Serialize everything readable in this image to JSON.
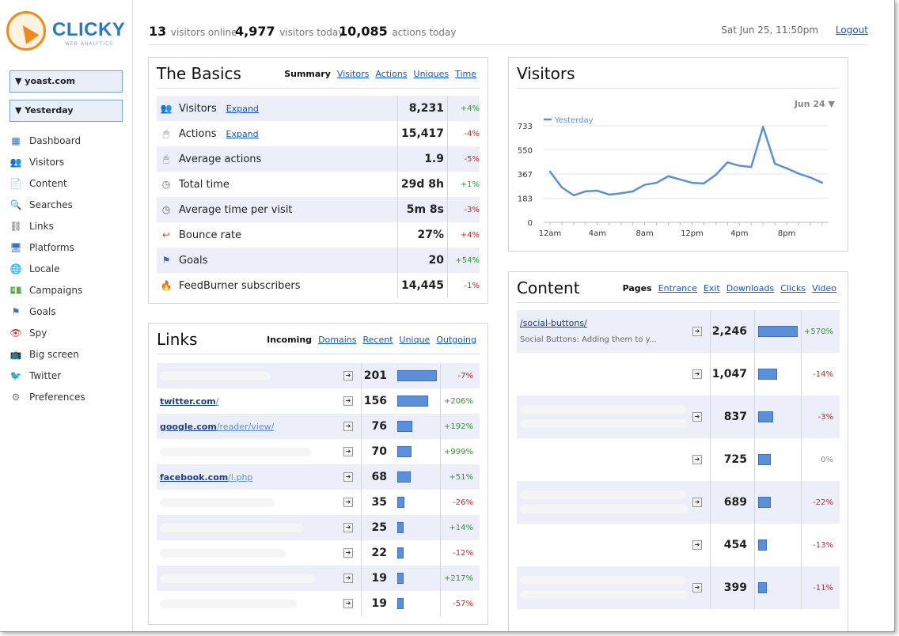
{
  "header": {
    "visitors_online_num": "13",
    "visitors_online_label": "visitors online",
    "visitors_today_num": "4,977",
    "visitors_today_label": "visitors today",
    "actions_today_num": "10,085",
    "actions_today_label": "actions today",
    "datetime": "Sat Jun 25, 11:50pm",
    "logout": "Logout"
  },
  "logo": {
    "text": "CLICKY",
    "sub": "WEB ANALYTICS"
  },
  "sidebar": {
    "site_select": "▼ yoast.com",
    "date_select": "▼ Yesterday",
    "items": [
      {
        "label": "Dashboard",
        "icon": "dashboard-icon"
      },
      {
        "label": "Visitors",
        "icon": "visitors-icon"
      },
      {
        "label": "Content",
        "icon": "content-icon"
      },
      {
        "label": "Searches",
        "icon": "search-icon"
      },
      {
        "label": "Links",
        "icon": "link-icon"
      },
      {
        "label": "Platforms",
        "icon": "platforms-icon"
      },
      {
        "label": "Locale",
        "icon": "globe-icon"
      },
      {
        "label": "Campaigns",
        "icon": "campaigns-icon"
      },
      {
        "label": "Goals",
        "icon": "goal-flag-icon"
      },
      {
        "label": "Spy",
        "icon": "eye-icon"
      },
      {
        "label": "Big screen",
        "icon": "tv-icon"
      },
      {
        "label": "Twitter",
        "icon": "twitter-icon"
      },
      {
        "label": "Preferences",
        "icon": "gear-icon"
      }
    ]
  },
  "basics": {
    "title": "The Basics",
    "tabs": [
      "Summary",
      "Visitors",
      "Actions",
      "Uniques",
      "Time"
    ],
    "rows": [
      {
        "label": "Visitors",
        "expand": "Expand",
        "value": "8,231",
        "change": "+4%",
        "dir": "pos",
        "icon": "visitors-icon"
      },
      {
        "label": "Actions",
        "expand": "Expand",
        "value": "15,417",
        "change": "-4%",
        "dir": "neg",
        "icon": "mouse-icon"
      },
      {
        "label": "Average actions",
        "expand": "",
        "value": "1.9",
        "change": "-5%",
        "dir": "neg",
        "icon": "mouse-icon"
      },
      {
        "label": "Total time",
        "expand": "",
        "value": "29d 8h",
        "change": "+1%",
        "dir": "pos",
        "icon": "clock-icon"
      },
      {
        "label": "Average time per visit",
        "expand": "",
        "value": "5m 8s",
        "change": "-3%",
        "dir": "neg",
        "icon": "clock-icon"
      },
      {
        "label": "Bounce rate",
        "expand": "",
        "value": "27%",
        "change": "+4%",
        "dir": "neg",
        "icon": "bounce-icon"
      },
      {
        "label": "Goals",
        "expand": "",
        "value": "20",
        "change": "+54%",
        "dir": "pos",
        "icon": "goal-flag-icon"
      },
      {
        "label": "FeedBurner subscribers",
        "expand": "",
        "value": "14,445",
        "change": "-1%",
        "dir": "neg",
        "icon": "feedburner-icon"
      }
    ]
  },
  "links": {
    "title": "Links",
    "tabs": [
      "Incoming",
      "Domains",
      "Recent",
      "Unique",
      "Outgoing"
    ],
    "rows": [
      {
        "domain": "",
        "path": "",
        "value": "201",
        "pct": 1.0,
        "change": "-7%",
        "dir": "neg"
      },
      {
        "domain": "twitter.com",
        "path": "/",
        "value": "156",
        "pct": 0.78,
        "change": "+206%",
        "dir": "pos"
      },
      {
        "domain": "google.com",
        "path": "/reader/view/",
        "value": "76",
        "pct": 0.38,
        "change": "+192%",
        "dir": "pos"
      },
      {
        "domain": "",
        "path": "",
        "value": "70",
        "pct": 0.35,
        "change": "+999%",
        "dir": "pos"
      },
      {
        "domain": "facebook.com",
        "path": "/l.php",
        "value": "68",
        "pct": 0.34,
        "change": "+51%",
        "dir": "pos"
      },
      {
        "domain": "",
        "path": "",
        "value": "35",
        "pct": 0.17,
        "change": "-26%",
        "dir": "neg"
      },
      {
        "domain": "",
        "path": "",
        "value": "25",
        "pct": 0.12,
        "change": "+14%",
        "dir": "pos"
      },
      {
        "domain": "",
        "path": "",
        "value": "22",
        "pct": 0.11,
        "change": "-12%",
        "dir": "neg"
      },
      {
        "domain": "",
        "path": "",
        "value": "19",
        "pct": 0.09,
        "change": "+217%",
        "dir": "pos"
      },
      {
        "domain": "",
        "path": "",
        "value": "19",
        "pct": 0.09,
        "change": "-57%",
        "dir": "neg"
      }
    ]
  },
  "visitors_chart": {
    "title": "Visitors",
    "date_select": "Jun 24 ▼"
  },
  "chart_data": {
    "type": "line",
    "title": "",
    "xlabel": "",
    "ylabel": "",
    "x": [
      "12am",
      "1am",
      "2am",
      "3am",
      "4am",
      "5am",
      "6am",
      "7am",
      "8am",
      "9am",
      "10am",
      "11am",
      "12pm",
      "1pm",
      "2pm",
      "3pm",
      "4pm",
      "5pm",
      "6pm",
      "7pm",
      "8pm",
      "9pm",
      "10pm",
      "11pm"
    ],
    "xticks": [
      "12am",
      "4am",
      "8am",
      "12pm",
      "4pm",
      "8pm"
    ],
    "yticks": [
      "0",
      "183",
      "367",
      "550",
      "733"
    ],
    "ylim": [
      0,
      733
    ],
    "series": [
      {
        "name": "Yesterday",
        "color": "#5b8fd8",
        "values": [
          385,
          265,
          205,
          235,
          240,
          210,
          220,
          235,
          285,
          300,
          350,
          325,
          300,
          295,
          360,
          455,
          430,
          420,
          725,
          445,
          410,
          370,
          340,
          300
        ]
      }
    ],
    "legend": "top-left"
  },
  "content": {
    "title": "Content",
    "tabs": [
      "Pages",
      "Entrance",
      "Exit",
      "Downloads",
      "Clicks",
      "Video"
    ],
    "rows": [
      {
        "path": "/social-buttons/",
        "desc": "Social Buttons: Adding them to y...",
        "value": "2,246",
        "pct": 1.0,
        "change": "+570%",
        "dir": "pos"
      },
      {
        "path": "",
        "desc": "",
        "value": "1,047",
        "pct": 0.47,
        "change": "-14%",
        "dir": "neg"
      },
      {
        "path": "",
        "desc": "",
        "value": "837",
        "pct": 0.37,
        "change": "-3%",
        "dir": "neg"
      },
      {
        "path": "",
        "desc": "",
        "value": "725",
        "pct": 0.32,
        "change": "0%",
        "dir": "zero"
      },
      {
        "path": "",
        "desc": "",
        "value": "689",
        "pct": 0.31,
        "change": "-22%",
        "dir": "neg"
      },
      {
        "path": "",
        "desc": "",
        "value": "454",
        "pct": 0.2,
        "change": "-13%",
        "dir": "neg"
      },
      {
        "path": "",
        "desc": "",
        "value": "399",
        "pct": 0.18,
        "change": "-11%",
        "dir": "neg"
      }
    ]
  }
}
